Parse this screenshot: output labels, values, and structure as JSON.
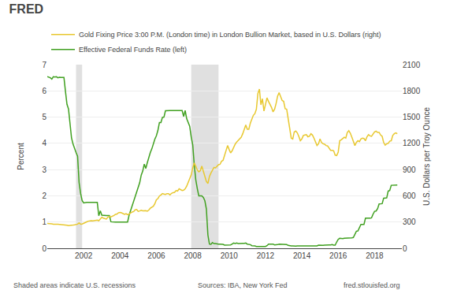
{
  "chart_data": {
    "type": "line",
    "title": "FRED",
    "annotations": [
      "Shaded areas indicate U.S. recessions",
      "Sources: IBA, New York Fed",
      "fred.stlouisfed.org"
    ],
    "ylabel": "Percent",
    "y2label": "U.S. Dollars per Troy Ounce",
    "xlim": [
      2000.0,
      2019.5
    ],
    "xticks": [
      2002,
      2004,
      2006,
      2008,
      2010,
      2012,
      2014,
      2016,
      2018
    ],
    "ylim": [
      0,
      7
    ],
    "yticks": [
      0,
      1,
      2,
      3,
      4,
      5,
      6,
      7
    ],
    "y2lim": [
      0,
      2100
    ],
    "y2ticks": [
      0,
      300,
      600,
      900,
      1200,
      1500,
      1800,
      2100
    ],
    "grid": "y",
    "shaded_ranges": [
      [
        2001.583,
        2001.917
      ],
      [
        2007.917,
        2009.417
      ]
    ],
    "x": [
      2000.0,
      2000.083,
      2000.167,
      2000.25,
      2000.333,
      2000.417,
      2000.5,
      2000.583,
      2000.667,
      2000.75,
      2000.833,
      2000.917,
      2001.0,
      2001.083,
      2001.167,
      2001.25,
      2001.333,
      2001.417,
      2001.5,
      2001.583,
      2001.667,
      2001.75,
      2001.833,
      2001.917,
      2002.0,
      2002.083,
      2002.167,
      2002.25,
      2002.333,
      2002.417,
      2002.5,
      2002.583,
      2002.667,
      2002.75,
      2002.833,
      2002.917,
      2003.0,
      2003.083,
      2003.167,
      2003.25,
      2003.333,
      2003.417,
      2003.5,
      2003.583,
      2003.667,
      2003.75,
      2003.833,
      2003.917,
      2004.0,
      2004.083,
      2004.167,
      2004.25,
      2004.333,
      2004.417,
      2004.5,
      2004.583,
      2004.667,
      2004.75,
      2004.833,
      2004.917,
      2005.0,
      2005.083,
      2005.167,
      2005.25,
      2005.333,
      2005.417,
      2005.5,
      2005.583,
      2005.667,
      2005.75,
      2005.833,
      2005.917,
      2006.0,
      2006.083,
      2006.167,
      2006.25,
      2006.333,
      2006.417,
      2006.5,
      2006.583,
      2006.667,
      2006.75,
      2006.833,
      2006.917,
      2007.0,
      2007.083,
      2007.167,
      2007.25,
      2007.333,
      2007.417,
      2007.5,
      2007.583,
      2007.667,
      2007.75,
      2007.833,
      2007.917,
      2008.0,
      2008.083,
      2008.167,
      2008.25,
      2008.333,
      2008.417,
      2008.5,
      2008.583,
      2008.667,
      2008.75,
      2008.833,
      2008.917,
      2009.0,
      2009.083,
      2009.167,
      2009.25,
      2009.333,
      2009.417,
      2009.5,
      2009.583,
      2009.667,
      2009.75,
      2009.833,
      2009.917,
      2010.0,
      2010.083,
      2010.167,
      2010.25,
      2010.333,
      2010.417,
      2010.5,
      2010.583,
      2010.667,
      2010.75,
      2010.833,
      2010.917,
      2011.0,
      2011.083,
      2011.167,
      2011.25,
      2011.333,
      2011.417,
      2011.5,
      2011.583,
      2011.667,
      2011.75,
      2011.833,
      2011.917,
      2012.0,
      2012.083,
      2012.167,
      2012.25,
      2012.333,
      2012.417,
      2012.5,
      2012.583,
      2012.667,
      2012.75,
      2012.833,
      2012.917,
      2013.0,
      2013.083,
      2013.167,
      2013.25,
      2013.333,
      2013.417,
      2013.5,
      2013.583,
      2013.667,
      2013.75,
      2013.833,
      2013.917,
      2014.0,
      2014.083,
      2014.167,
      2014.25,
      2014.333,
      2014.417,
      2014.5,
      2014.583,
      2014.667,
      2014.75,
      2014.833,
      2014.917,
      2015.0,
      2015.083,
      2015.167,
      2015.25,
      2015.333,
      2015.417,
      2015.5,
      2015.583,
      2015.667,
      2015.75,
      2015.833,
      2015.917,
      2016.0,
      2016.083,
      2016.167,
      2016.25,
      2016.333,
      2016.417,
      2016.5,
      2016.583,
      2016.667,
      2016.75,
      2016.833,
      2016.917,
      2017.0,
      2017.083,
      2017.167,
      2017.25,
      2017.333,
      2017.417,
      2017.5,
      2017.583,
      2017.667,
      2017.75,
      2017.833,
      2017.917,
      2018.0,
      2018.083,
      2018.167,
      2018.25,
      2018.333,
      2018.417,
      2018.5,
      2018.583,
      2018.667,
      2018.75,
      2018.833,
      2018.917,
      2019.0,
      2019.083,
      2019.167,
      2019.25
    ],
    "series": [
      {
        "name": "Gold Fixing Price 3:00 P.M. (London time) in London Bullion Market, based in U.S. Dollars (right)",
        "color": "#e8c830",
        "axis": "y2",
        "values": [
          283,
          284,
          283,
          280,
          275,
          272,
          275,
          274,
          273,
          270,
          267,
          270,
          265,
          263,
          260,
          260,
          263,
          265,
          268,
          272,
          276,
          290,
          276,
          278,
          288,
          295,
          302,
          310,
          315,
          316,
          313,
          315,
          318,
          322,
          315,
          333,
          355,
          345,
          336,
          334,
          355,
          365,
          358,
          363,
          375,
          388,
          392,
          407,
          410,
          405,
          395,
          388,
          395,
          384,
          392,
          405,
          415,
          420,
          440,
          443,
          422,
          427,
          434,
          429,
          432,
          430,
          425,
          437,
          458,
          473,
          480,
          510,
          555,
          568,
          598,
          610,
          625,
          620,
          615,
          625,
          625,
          610,
          628,
          636,
          640,
          660,
          655,
          680,
          668,
          660,
          665,
          680,
          710,
          755,
          810,
          840,
          920,
          975,
          940,
          895,
          875,
          888,
          940,
          880,
          842,
          765,
          740,
          820,
          860,
          900,
          925,
          920,
          940,
          955,
          960,
          995,
          1005,
          1060,
          1130,
          1175,
          1130,
          1090,
          1115,
          1155,
          1190,
          1215,
          1235,
          1245,
          1270,
          1310,
          1370,
          1410,
          1360,
          1360,
          1430,
          1480,
          1520,
          1540,
          1590,
          1770,
          1820,
          1640,
          1710,
          1570,
          1660,
          1720,
          1680,
          1650,
          1610,
          1560,
          1590,
          1655,
          1740,
          1780,
          1730,
          1690,
          1680,
          1595,
          1590,
          1480,
          1370,
          1260,
          1250,
          1330,
          1340,
          1320,
          1280,
          1230,
          1250,
          1290,
          1295,
          1300,
          1275,
          1280,
          1310,
          1295,
          1260,
          1220,
          1175,
          1195,
          1250,
          1210,
          1195,
          1190,
          1175,
          1170,
          1150,
          1120,
          1120,
          1115,
          1065,
          1060,
          1100,
          1230,
          1240,
          1255,
          1270,
          1260,
          1325,
          1345,
          1315,
          1270,
          1215,
          1175,
          1210,
          1230,
          1220,
          1250,
          1260,
          1255,
          1230,
          1275,
          1300,
          1285,
          1280,
          1305,
          1330,
          1340,
          1325,
          1325,
          1295,
          1280,
          1210,
          1180,
          1195,
          1200,
          1225,
          1230,
          1290,
          1310,
          1320,
          1310
        ]
      },
      {
        "name": "Effective Federal Funds Rate (left)",
        "color": "#40a020",
        "axis": "y",
        "values": [
          6.54,
          6.52,
          6.5,
          6.45,
          6.54,
          6.53,
          6.54,
          6.5,
          6.52,
          6.51,
          6.51,
          6.51,
          5.98,
          5.49,
          5.31,
          4.8,
          4.21,
          3.97,
          3.77,
          3.65,
          3.51,
          2.5,
          2.09,
          1.82,
          1.73,
          1.75,
          1.75,
          1.75,
          1.75,
          1.75,
          1.75,
          1.75,
          1.75,
          1.75,
          1.24,
          1.43,
          1.26,
          1.25,
          1.25,
          1.25,
          1.25,
          1.25,
          1.01,
          1.0,
          1.0,
          1.0,
          1.0,
          1.0,
          1.0,
          1.0,
          1.0,
          1.0,
          1.01,
          1.0,
          1.26,
          1.43,
          1.61,
          1.82,
          1.95,
          2.16,
          2.28,
          2.5,
          2.79,
          2.94,
          3.21,
          3.04,
          3.26,
          3.5,
          3.65,
          3.79,
          4.0,
          4.16,
          4.29,
          4.49,
          4.79,
          4.79,
          4.99,
          5.0,
          5.24,
          5.25,
          5.25,
          5.25,
          5.25,
          5.25,
          5.25,
          5.26,
          5.25,
          5.25,
          5.25,
          5.25,
          5.02,
          5.25,
          4.94,
          4.76,
          4.65,
          4.24,
          3.94,
          3.18,
          2.61,
          2.28,
          2.0,
          2.0,
          2.0,
          1.94,
          1.81,
          1.5,
          0.51,
          0.16,
          0.15,
          0.22,
          0.18,
          0.18,
          0.16,
          0.16,
          0.16,
          0.16,
          0.15,
          0.12,
          0.12,
          0.12,
          0.11,
          0.13,
          0.16,
          0.2,
          0.18,
          0.2,
          0.18,
          0.19,
          0.19,
          0.19,
          0.19,
          0.2,
          0.16,
          0.16,
          0.14,
          0.1,
          0.1,
          0.09,
          0.07,
          0.07,
          0.08,
          0.07,
          0.08,
          0.07,
          0.07,
          0.1,
          0.16,
          0.16,
          0.16,
          0.16,
          0.13,
          0.13,
          0.14,
          0.16,
          0.16,
          0.16,
          0.14,
          0.15,
          0.14,
          0.11,
          0.09,
          0.09,
          0.09,
          0.08,
          0.08,
          0.09,
          0.09,
          0.09,
          0.07,
          0.07,
          0.09,
          0.09,
          0.09,
          0.09,
          0.09,
          0.09,
          0.09,
          0.09,
          0.09,
          0.12,
          0.11,
          0.11,
          0.11,
          0.12,
          0.13,
          0.13,
          0.13,
          0.13,
          0.14,
          0.12,
          0.12,
          0.24,
          0.34,
          0.38,
          0.37,
          0.37,
          0.38,
          0.38,
          0.4,
          0.4,
          0.4,
          0.4,
          0.41,
          0.54,
          0.65,
          0.66,
          0.79,
          0.91,
          0.91,
          0.91,
          1.15,
          1.16,
          1.15,
          1.15,
          1.16,
          1.3,
          1.41,
          1.42,
          1.51,
          1.69,
          1.7,
          1.7,
          1.91,
          1.91,
          1.92,
          2.18,
          2.2,
          2.4,
          2.4,
          2.4,
          2.41,
          2.41
        ]
      }
    ]
  }
}
